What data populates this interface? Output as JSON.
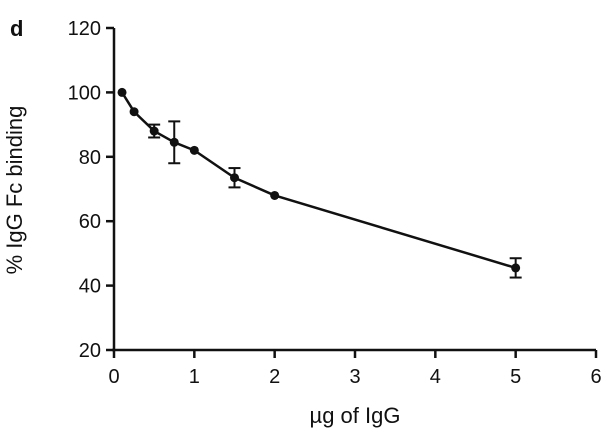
{
  "panel_label": "d",
  "chart_data": {
    "type": "line",
    "title": "",
    "xlabel": "µg of IgG",
    "ylabel": "% IgG Fc binding",
    "xlim": [
      0,
      6
    ],
    "ylim": [
      20,
      120
    ],
    "x_ticks": [
      0,
      1,
      2,
      3,
      4,
      5,
      6
    ],
    "y_ticks": [
      20,
      40,
      60,
      80,
      100,
      120
    ],
    "grid": false,
    "legend": "none",
    "series": [
      {
        "x": [
          0.1,
          0.25,
          0.5,
          0.75,
          1.0,
          1.5,
          2.0,
          5.0
        ],
        "y": [
          100,
          94,
          88,
          84.5,
          82,
          73.5,
          68,
          45.5
        ],
        "error": [
          0,
          0,
          2,
          6.5,
          0,
          3,
          0,
          3
        ]
      }
    ]
  },
  "colors": {
    "line": "#111111",
    "axis": "#111111",
    "background": "#ffffff"
  }
}
